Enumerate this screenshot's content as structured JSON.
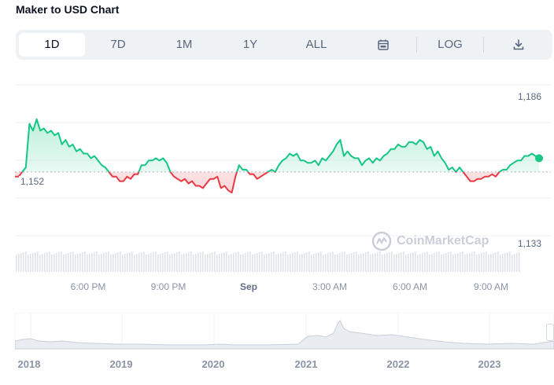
{
  "title": "Maker to USD Chart",
  "toolbar": {
    "tabs": [
      {
        "label": "1D",
        "active": true
      },
      {
        "label": "7D",
        "active": false
      },
      {
        "label": "1M",
        "active": false
      },
      {
        "label": "1Y",
        "active": false
      },
      {
        "label": "ALL",
        "active": false
      }
    ],
    "calendar_icon": "calendar-icon",
    "log_label": "LOG",
    "download_icon": "download-icon"
  },
  "chart": {
    "y_ticks": [
      "1,186",
      "1,133"
    ],
    "reference_value": "1,152",
    "x_ticks": [
      "6:00 PM",
      "9:00 PM",
      "Sep",
      "3:00 AM",
      "6:00 AM",
      "9:00 AM"
    ],
    "watermark": "CoinMarketCap",
    "up_color": "#16c784",
    "down_color": "#ea3943"
  },
  "navigator": {
    "years": [
      "2018",
      "2019",
      "2020",
      "2021",
      "2022",
      "2023"
    ]
  },
  "chart_data": {
    "type": "line",
    "reference_line": 1152,
    "ylim": [
      1127,
      1192
    ],
    "series": [
      {
        "values": [
          1150,
          1150,
          1152,
          1154,
          1173,
          1170,
          1175,
          1170,
          1171,
          1169,
          1170,
          1168,
          1169,
          1164,
          1166,
          1163,
          1164,
          1161,
          1162,
          1160,
          1160,
          1158,
          1159,
          1157,
          1155,
          1154,
          1152,
          1150,
          1150,
          1148,
          1148,
          1150,
          1149,
          1151,
          1151,
          1155,
          1155,
          1157,
          1157,
          1158,
          1157,
          1158,
          1156,
          1152,
          1150,
          1149,
          1148,
          1149,
          1147,
          1148,
          1146,
          1146,
          1145,
          1147,
          1149,
          1149,
          1150,
          1145,
          1146,
          1144,
          1143,
          1150,
          1155,
          1153,
          1153,
          1151,
          1151,
          1149,
          1150,
          1151,
          1152,
          1153,
          1152,
          1155,
          1157,
          1158,
          1160,
          1159,
          1160,
          1157,
          1157,
          1156,
          1156,
          1157,
          1155,
          1158,
          1157,
          1159,
          1161,
          1164,
          1166,
          1159,
          1161,
          1159,
          1158,
          1158,
          1155,
          1157,
          1158,
          1156,
          1158,
          1157,
          1159,
          1160,
          1162,
          1162,
          1164,
          1163,
          1163,
          1165,
          1165,
          1164,
          1166,
          1165,
          1162,
          1163,
          1159,
          1161,
          1158,
          1156,
          1153,
          1154,
          1152,
          1154,
          1152,
          1150,
          1148,
          1148,
          1149,
          1149,
          1150,
          1150,
          1151,
          1150,
          1152,
          1153,
          1153,
          1155,
          1156,
          1157,
          1157,
          1159,
          1159,
          1160,
          1159,
          1158
        ]
      }
    ]
  }
}
